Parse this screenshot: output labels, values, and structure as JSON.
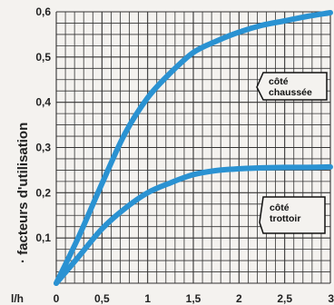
{
  "chart_data": {
    "type": "line",
    "title": "",
    "ylabel": "· facteurs d'utilisation",
    "xlabel": "l/h",
    "xlim": [
      0,
      3
    ],
    "ylim": [
      0,
      0.6
    ],
    "x_ticks": [
      "0",
      "0,5",
      "1",
      "1,5",
      "2",
      "2,5",
      "3"
    ],
    "y_ticks": [
      "0,1",
      "0,2",
      "0,3",
      "0,4",
      "0,5",
      "0,6"
    ],
    "grid": true,
    "line_color": "#2a92d2",
    "series": [
      {
        "name_lines": [
          "côté",
          "chaussée"
        ],
        "x": [
          0,
          0.25,
          0.5,
          0.75,
          1.0,
          1.25,
          1.5,
          1.75,
          2.0,
          2.25,
          2.5,
          2.75,
          3.0
        ],
        "y": [
          0,
          0.105,
          0.22,
          0.33,
          0.41,
          0.465,
          0.51,
          0.535,
          0.555,
          0.57,
          0.58,
          0.59,
          0.598
        ]
      },
      {
        "name_lines": [
          "côté",
          "trottoir"
        ],
        "x": [
          0,
          0.25,
          0.5,
          0.75,
          1.0,
          1.25,
          1.5,
          1.75,
          2.0,
          2.25,
          2.5,
          2.75,
          3.0
        ],
        "y": [
          0,
          0.06,
          0.12,
          0.165,
          0.2,
          0.222,
          0.24,
          0.249,
          0.253,
          0.255,
          0.256,
          0.256,
          0.257
        ]
      }
    ]
  }
}
